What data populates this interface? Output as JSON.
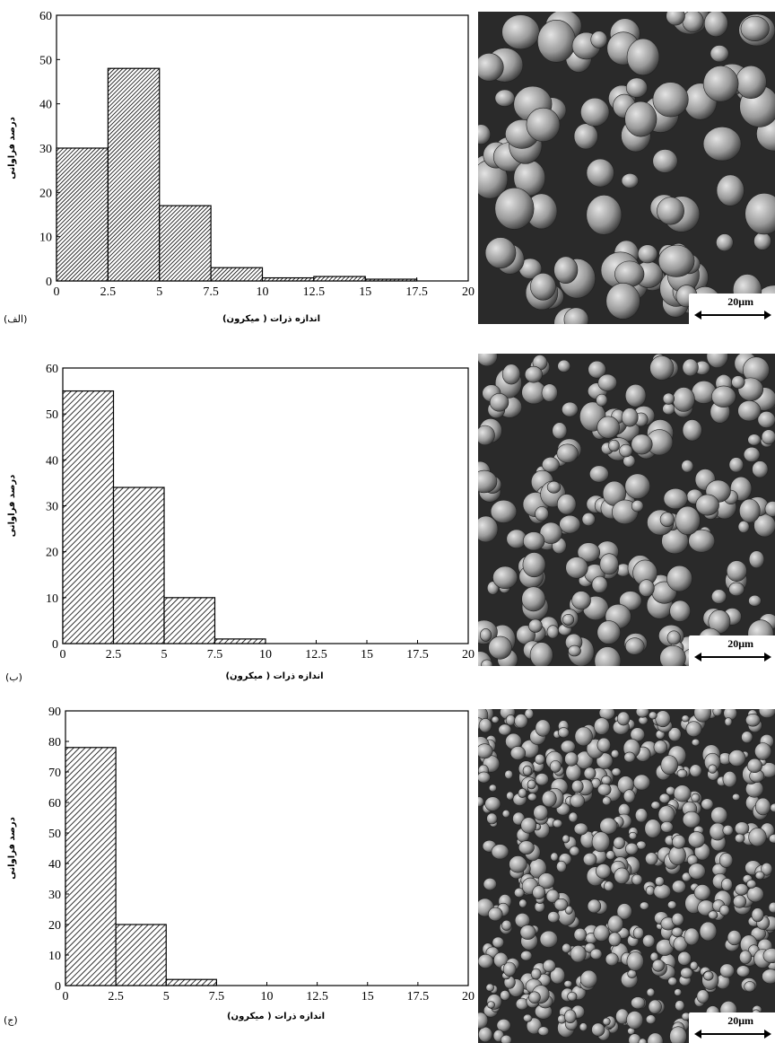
{
  "chart_data": [
    {
      "type": "bar",
      "label": "(الف)",
      "xlabel": "اندازه ذرات ( میکرون)",
      "ylabel": "درصد فراوانی",
      "bin_edges": [
        0,
        2.5,
        5,
        7.5,
        10,
        12.5,
        15,
        17.5
      ],
      "x_ticks": [
        "0",
        "2.5",
        "5",
        "7.5",
        "10",
        "12.5",
        "15",
        "17.5",
        "20"
      ],
      "y_ticks": [
        "0",
        "10",
        "20",
        "30",
        "40",
        "50",
        "60"
      ],
      "xlim": [
        0,
        20
      ],
      "ylim": [
        0,
        60
      ],
      "values": [
        30,
        48,
        17,
        3,
        0.7,
        1,
        0.4
      ],
      "scale_bar": "20μm"
    },
    {
      "type": "bar",
      "label": "(ب)",
      "xlabel": "اندازه ذرات ( میکرون)",
      "ylabel": "درصد فراوانی",
      "bin_edges": [
        0,
        2.5,
        5,
        7.5,
        10
      ],
      "x_ticks": [
        "0",
        "2.5",
        "5",
        "7.5",
        "10",
        "12.5",
        "15",
        "17.5",
        "20"
      ],
      "y_ticks": [
        "0",
        "10",
        "20",
        "30",
        "40",
        "50",
        "60"
      ],
      "xlim": [
        0,
        20
      ],
      "ylim": [
        0,
        60
      ],
      "values": [
        55,
        34,
        10,
        1
      ],
      "scale_bar": "20μm"
    },
    {
      "type": "bar",
      "label": "(ج)",
      "xlabel": "اندازه ذرات ( میکرون)",
      "ylabel": "درصد فراوانی",
      "bin_edges": [
        0,
        2.5,
        5,
        7.5
      ],
      "x_ticks": [
        "0",
        "2.5",
        "5",
        "7.5",
        "10",
        "12.5",
        "15",
        "17.5",
        "20"
      ],
      "y_ticks": [
        "0",
        "10",
        "20",
        "30",
        "40",
        "50",
        "60",
        "70",
        "80",
        "90"
      ],
      "xlim": [
        0,
        20
      ],
      "ylim": [
        0,
        90
      ],
      "values": [
        78,
        20,
        2
      ],
      "scale_bar": "20μm"
    }
  ]
}
